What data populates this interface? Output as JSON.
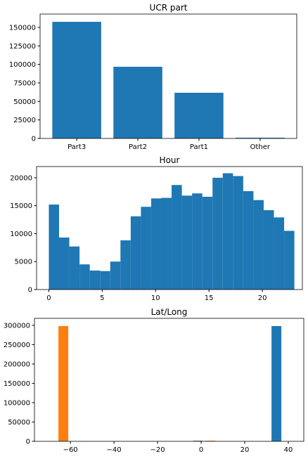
{
  "chart_data": [
    {
      "type": "bar",
      "title": "UCR part",
      "categories": [
        "Part3",
        "Part2",
        "Part1",
        "Other"
      ],
      "values": [
        157500,
        96800,
        61700,
        1000
      ],
      "color": "#1f77b4",
      "ylim": [
        0,
        168000
      ],
      "yticks": [
        0,
        25000,
        50000,
        75000,
        100000,
        125000,
        150000
      ]
    },
    {
      "type": "histogram",
      "title": "Hour",
      "series": [
        {
          "color": "#1f77b4",
          "bins": [
            0,
            0.9583,
            1.9167,
            2.875,
            3.8333,
            4.7917,
            5.75,
            6.7083,
            7.6667,
            8.625,
            9.5833,
            10.5417,
            11.5,
            12.4583,
            13.4167,
            14.375,
            15.3333,
            16.2917,
            17.25,
            18.2083,
            19.1667,
            20.125,
            21.0833,
            22.0417,
            23
          ],
          "values": [
            15200,
            9300,
            7700,
            4500,
            3400,
            3300,
            5000,
            8800,
            13100,
            14800,
            16300,
            16400,
            18700,
            16800,
            17200,
            16600,
            20000,
            20800,
            20300,
            17600,
            16000,
            14200,
            12900,
            10500
          ]
        }
      ],
      "xlim": [
        -1.15,
        23.75
      ],
      "xticks": [
        0,
        5,
        10,
        15,
        20
      ],
      "ylim": [
        0,
        22000
      ],
      "yticks": [
        0,
        5000,
        10000,
        15000,
        20000
      ]
    },
    {
      "type": "histogram",
      "title": "Lat/Long",
      "series": [
        {
          "color": "#1f77b4",
          "bins": [
            -3.7,
            0.8,
            5.3,
            9.8,
            14.3,
            18.8,
            23.3,
            27.8,
            32.3,
            36.8
          ],
          "values": [
            1500,
            0,
            0,
            0,
            0,
            0,
            0,
            0,
            298000
          ]
        },
        {
          "color": "#ff7f0e",
          "bins": [
            -65.5,
            -61,
            -56.5,
            -52,
            -47.5,
            -43,
            -38.5,
            -34,
            -29.5,
            -25,
            -20.5,
            -16,
            -11.5,
            -7,
            -2.5,
            2,
            6.5
          ],
          "values": [
            298000,
            0,
            0,
            0,
            0,
            0,
            0,
            0,
            0,
            0,
            0,
            0,
            0,
            0,
            0,
            1500
          ]
        }
      ],
      "xlim": [
        -76.5,
        47.1
      ],
      "xticks": [
        {
          "value": -60,
          "label": "−60"
        },
        {
          "value": -40,
          "label": "−40"
        },
        {
          "value": -20,
          "label": "−20"
        },
        0,
        20,
        40
      ],
      "ylim": [
        0,
        318000
      ],
      "yticks": [
        0,
        50000,
        100000,
        150000,
        200000,
        250000,
        300000
      ]
    }
  ]
}
